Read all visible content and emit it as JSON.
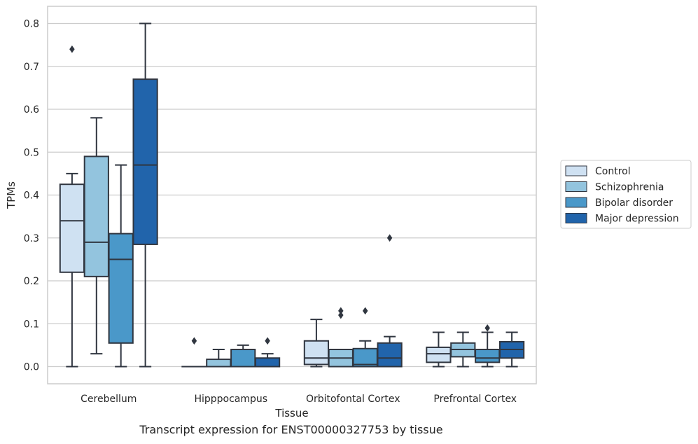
{
  "caption": "Transcript expression for ENST00000327753 by tissue",
  "chart_data": {
    "type": "box",
    "xlabel": "Tissue",
    "ylabel": "TPMs",
    "ylim": [
      -0.04,
      0.84
    ],
    "yticks": [
      0.0,
      0.1,
      0.2,
      0.3,
      0.4,
      0.5,
      0.6,
      0.7,
      0.8
    ],
    "ytick_labels": [
      "0.0",
      "0.1",
      "0.2",
      "0.3",
      "0.4",
      "0.5",
      "0.6",
      "0.7",
      "0.8"
    ],
    "grid": "horizontal",
    "legend_position": "right",
    "categories": [
      "Cerebellum",
      "Hipppocampus",
      "Orbitofontal Cortex",
      "Prefrontal Cortex"
    ],
    "series": [
      {
        "name": "Control",
        "color": "#cfe1f2",
        "boxes": [
          {
            "min": 0.0,
            "q1": 0.22,
            "median": 0.34,
            "q3": 0.425,
            "max": 0.45,
            "outliers": [
              0.74
            ]
          },
          {
            "min": 0.0,
            "q1": 0.0,
            "median": 0.0,
            "q3": 0.0,
            "max": 0.0,
            "outliers": [
              0.06
            ]
          },
          {
            "min": 0.0,
            "q1": 0.005,
            "median": 0.02,
            "q3": 0.06,
            "max": 0.11,
            "outliers": []
          },
          {
            "min": 0.0,
            "q1": 0.01,
            "median": 0.03,
            "q3": 0.045,
            "max": 0.08,
            "outliers": []
          }
        ]
      },
      {
        "name": "Schizophrenia",
        "color": "#93c4de",
        "boxes": [
          {
            "min": 0.03,
            "q1": 0.21,
            "median": 0.29,
            "q3": 0.49,
            "max": 0.58,
            "outliers": []
          },
          {
            "min": 0.0,
            "q1": 0.0,
            "median": 0.0,
            "q3": 0.017,
            "max": 0.04,
            "outliers": []
          },
          {
            "min": 0.0,
            "q1": 0.0,
            "median": 0.02,
            "q3": 0.04,
            "max": 0.04,
            "outliers": [
              0.12,
              0.13
            ]
          },
          {
            "min": 0.0,
            "q1": 0.023,
            "median": 0.04,
            "q3": 0.055,
            "max": 0.08,
            "outliers": []
          }
        ]
      },
      {
        "name": "Bipolar disorder",
        "color": "#4a98c9",
        "boxes": [
          {
            "min": 0.0,
            "q1": 0.055,
            "median": 0.25,
            "q3": 0.31,
            "max": 0.47,
            "outliers": []
          },
          {
            "min": 0.0,
            "q1": 0.0,
            "median": 0.0,
            "q3": 0.04,
            "max": 0.05,
            "outliers": []
          },
          {
            "min": 0.0,
            "q1": 0.0,
            "median": 0.005,
            "q3": 0.042,
            "max": 0.06,
            "outliers": [
              0.13
            ]
          },
          {
            "min": 0.0,
            "q1": 0.01,
            "median": 0.02,
            "q3": 0.04,
            "max": 0.08,
            "outliers": [
              0.09
            ]
          }
        ]
      },
      {
        "name": "Major depression",
        "color": "#2164ab",
        "boxes": [
          {
            "min": 0.0,
            "q1": 0.285,
            "median": 0.47,
            "q3": 0.67,
            "max": 0.8,
            "outliers": []
          },
          {
            "min": 0.0,
            "q1": 0.0,
            "median": 0.0,
            "q3": 0.02,
            "max": 0.03,
            "outliers": [
              0.06
            ]
          },
          {
            "min": 0.0,
            "q1": 0.0,
            "median": 0.02,
            "q3": 0.055,
            "max": 0.07,
            "outliers": [
              0.3
            ]
          },
          {
            "min": 0.0,
            "q1": 0.02,
            "median": 0.04,
            "q3": 0.058,
            "max": 0.08,
            "outliers": []
          }
        ]
      }
    ],
    "edge_color": "#303640",
    "grid_color": "#cccccc"
  }
}
